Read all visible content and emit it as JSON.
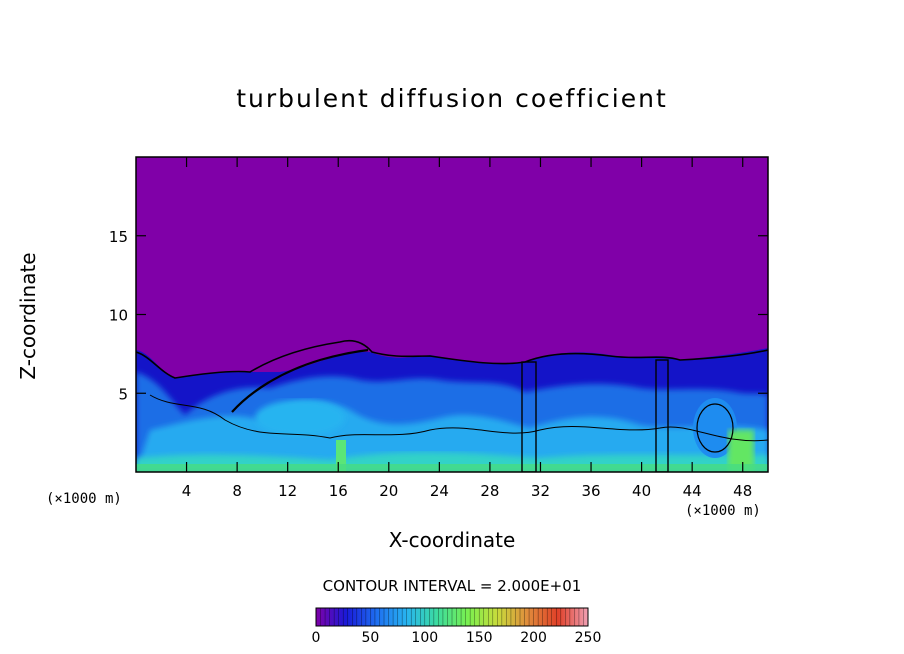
{
  "chart_data": {
    "type": "heatmap",
    "title": "turbulent diffusion coefficient",
    "xlabel": "X-coordinate",
    "ylabel": "Z-coordinate",
    "x_unit_label": "(×1000 m)",
    "y_unit_label": "(×1000 m)",
    "xlim": [
      0,
      50
    ],
    "ylim": [
      0,
      20
    ],
    "x_ticks": [
      4,
      8,
      12,
      16,
      20,
      24,
      28,
      32,
      36,
      40,
      44,
      48
    ],
    "y_ticks": [
      5,
      10,
      15
    ],
    "contour_interval_text": "CONTOUR INTERVAL = 2.000E+01",
    "colorbar": {
      "range": [
        0,
        250
      ],
      "ticks": [
        0,
        50,
        100,
        150,
        200,
        250
      ],
      "colors": [
        "#7f00a8",
        "#1a1ad8",
        "#1e6ef0",
        "#28b4f0",
        "#3cdca0",
        "#78f050",
        "#c8dc3c",
        "#e08c3c",
        "#e04028",
        "#f0a0b4"
      ]
    },
    "background_color": "#8000a8",
    "turbulent_layer_top_approx": 7.5
  }
}
